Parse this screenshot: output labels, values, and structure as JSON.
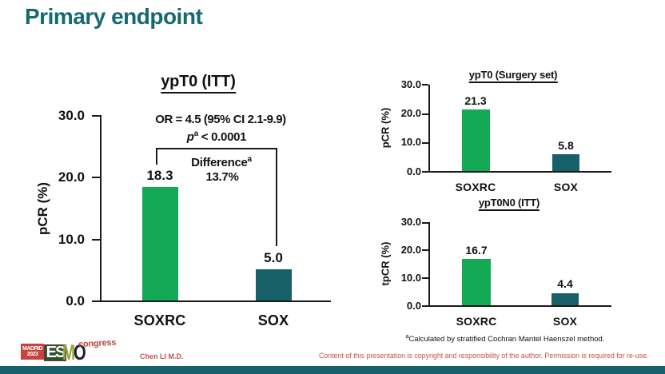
{
  "slide": {
    "title": "Primary endpoint",
    "footnote": {
      "sup": "a",
      "text": "Calculated by stratified Cochran Mantel Haenszel method."
    },
    "presenter": "Chen LI M.D.",
    "disclaimer": "Content of this presentation is copyright and responsibility of the author. Permission is required for re-use.",
    "logo": {
      "city": "MADRID",
      "year": "2023",
      "es": "ES",
      "m": "M",
      "o": "O",
      "suffix": "congress"
    },
    "colors": {
      "title_teal": "#15696f",
      "bar_green": "#14aa55",
      "bar_teal": "#175f69",
      "red_text": "#c8504b",
      "footer_bar": "#15606a"
    }
  },
  "chart_data": [
    {
      "type": "bar",
      "title": "ypT0 (ITT)",
      "ylabel": "pCR (%)",
      "ylim": [
        0,
        30
      ],
      "yticks": [
        0,
        10,
        20,
        30
      ],
      "ytick_labels": [
        "0.0",
        "10.0",
        "20.0",
        "30.0"
      ],
      "categories": [
        "SOXRC",
        "SOX"
      ],
      "values": [
        18.3,
        5.0
      ],
      "value_labels": [
        "18.3",
        "5.0"
      ],
      "bar_colors": [
        "#14aa55",
        "#175f69"
      ],
      "legend": null,
      "grid": false,
      "annotations": {
        "or": "OR = 4.5 (95% CI 2.1-9.9)",
        "p_italic": "p",
        "p_sup": "a",
        "p_rest": " < 0.0001",
        "diff_label": "Difference",
        "diff_sup": "a",
        "diff_value": "13.7%"
      }
    },
    {
      "type": "bar",
      "title": "ypT0 (Surgery set)",
      "ylabel": "pCR (%)",
      "ylim": [
        0,
        30
      ],
      "yticks": [
        0,
        10,
        20,
        30
      ],
      "ytick_labels": [
        "0.0",
        "10.0",
        "20.0",
        "30.0"
      ],
      "categories": [
        "SOXRC",
        "SOX"
      ],
      "values": [
        21.3,
        5.8
      ],
      "value_labels": [
        "21.3",
        "5.8"
      ],
      "bar_colors": [
        "#14aa55",
        "#175f69"
      ],
      "legend": null,
      "grid": false
    },
    {
      "type": "bar",
      "title": "ypT0N0 (ITT)",
      "ylabel": "tpCR (%)",
      "ylim": [
        0,
        30
      ],
      "yticks": [
        0,
        10,
        20,
        30
      ],
      "ytick_labels": [
        "0.0",
        "10.0",
        "20.0",
        "30.0"
      ],
      "categories": [
        "SOXRC",
        "SOX"
      ],
      "values": [
        16.7,
        4.4
      ],
      "value_labels": [
        "16.7",
        "4.4"
      ],
      "bar_colors": [
        "#14aa55",
        "#175f69"
      ],
      "legend": null,
      "grid": false
    }
  ]
}
